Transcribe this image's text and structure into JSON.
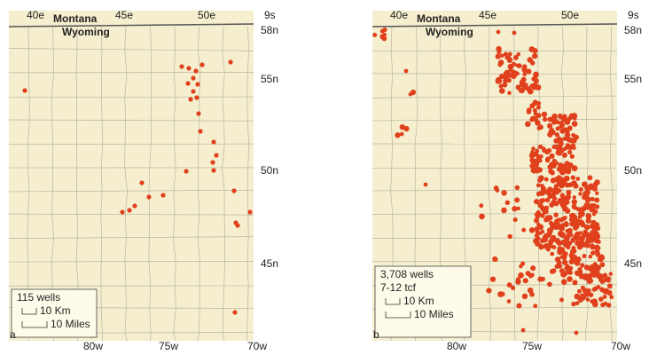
{
  "panels": [
    {
      "id": "a",
      "top_labels": [
        "40e",
        "45e",
        "50e",
        "9s"
      ],
      "states": [
        "Montana",
        "Wyoming"
      ],
      "right_labels": [
        "58n",
        "55n",
        "50n",
        "45n"
      ],
      "bottom_labels": [
        "80w",
        "75w",
        "70w"
      ],
      "legend": {
        "lines": [
          "115 wells"
        ],
        "scale": [
          "10 Km",
          "10 Miles"
        ]
      }
    },
    {
      "id": "b",
      "top_labels": [
        "40e",
        "45e",
        "50e",
        "9s"
      ],
      "states": [
        "Montana",
        "Wyoming"
      ],
      "right_labels": [
        "58n",
        "55n",
        "50n",
        "45n"
      ],
      "bottom_labels": [
        "80w",
        "75w",
        "70w"
      ],
      "legend": {
        "lines": [
          "3,708 wells",
          "7-12 tcf"
        ],
        "scale": [
          "10 Km",
          "10 Miles"
        ]
      }
    }
  ]
}
